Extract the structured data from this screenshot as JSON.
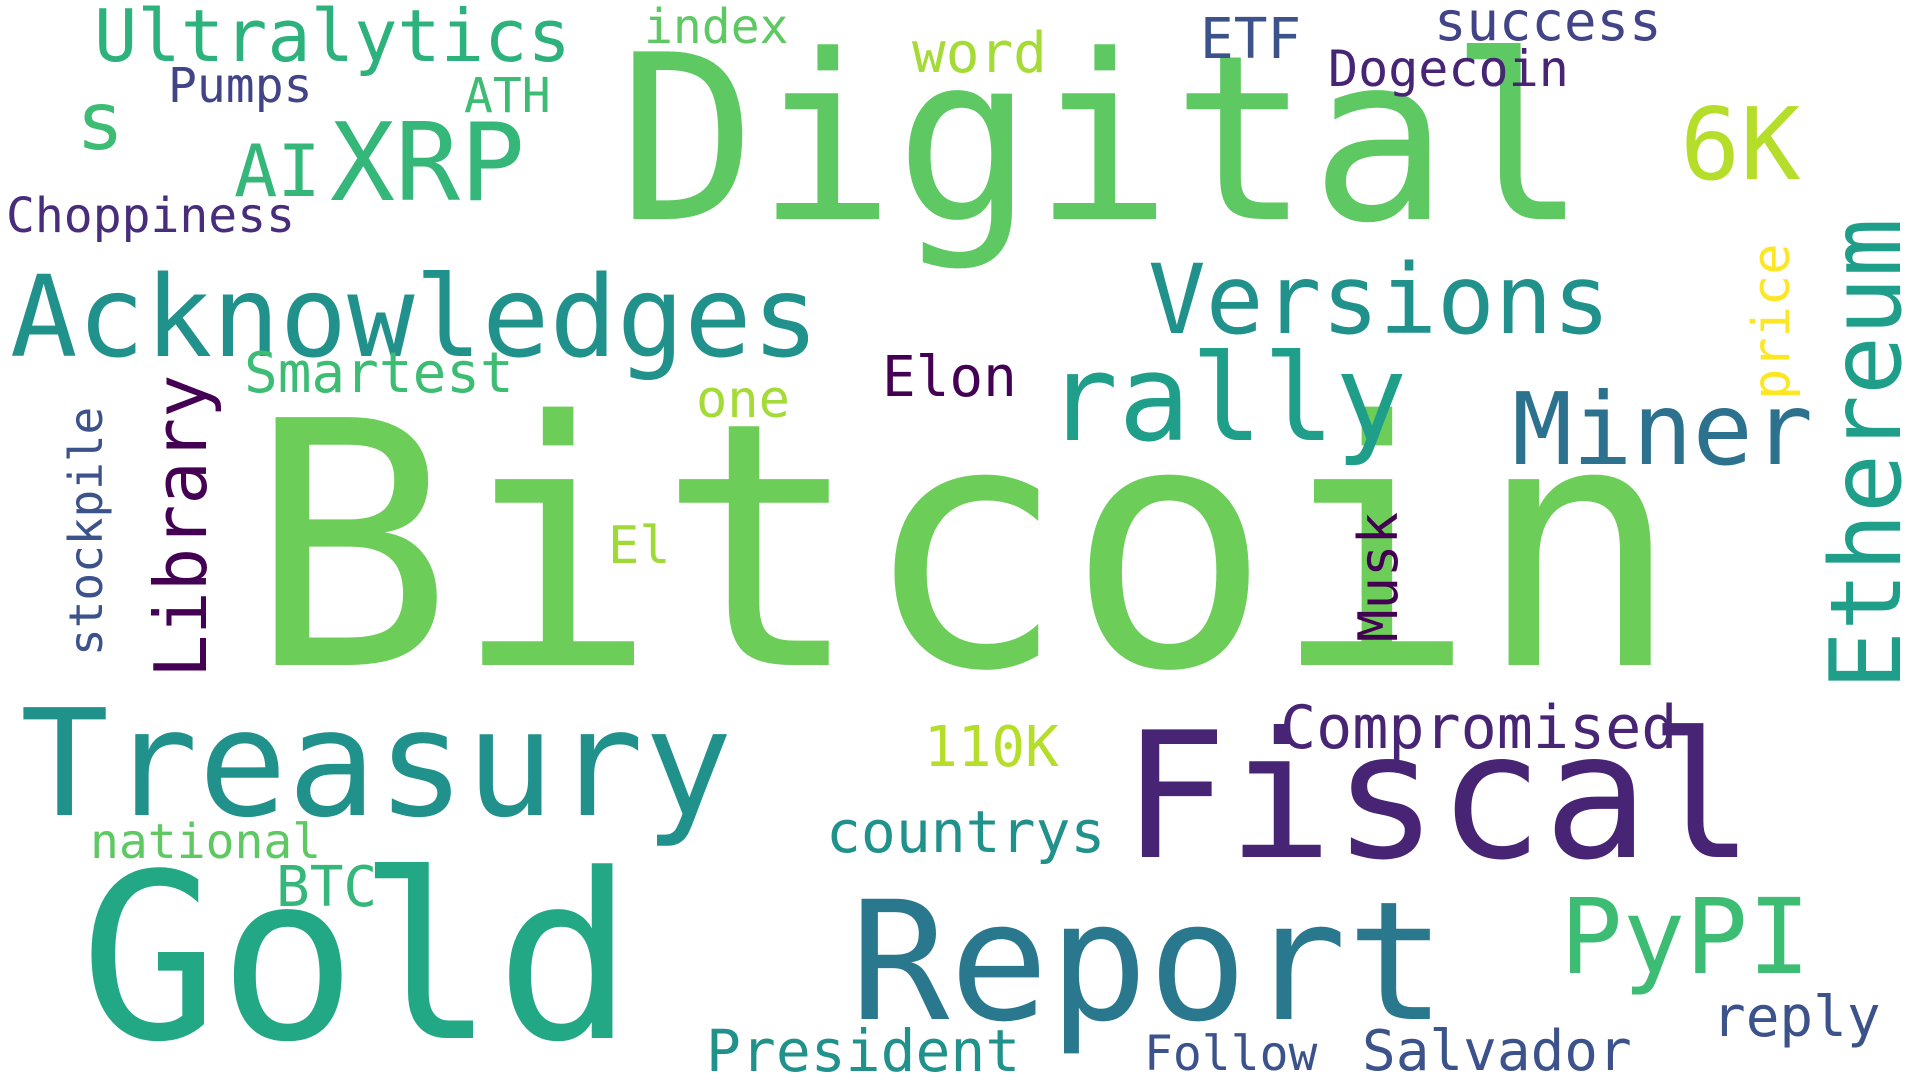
{
  "background": "#ffffff",
  "palette": {
    "green": "#6ccd59",
    "light-green": "#7ad151",
    "teal": "#1fa187",
    "teal-blue": "#21918c",
    "blue": "#2c728e",
    "mid-green": "#35b779",
    "dark-purple": "#482475",
    "deep-purple": "#440154",
    "yellow-green": "#b5de2b",
    "lime": "#a5db36",
    "yellow": "#fde725",
    "navy": "#3b528b",
    "slate": "#414487"
  },
  "words": {
    "bitcoin": "Bitcoin",
    "digital": "Digital",
    "gold": "Gold",
    "report": "Report",
    "fiscal": "Fiscal",
    "treasury": "Treasury",
    "acknowledges": "Acknowledges",
    "ethereum": "Ethereum",
    "versions": "Versions",
    "rally": "rally",
    "miner": "Miner",
    "xrp": "XRP",
    "6k": "6K",
    "pypi": "PyPI",
    "library": "Library",
    "ultralytics": "Ultralytics",
    "s": "s",
    "ai": "AI",
    "compromised": "Compromised",
    "countrys": "countrys",
    "president": "President",
    "salvador": "Salvador",
    "smartest": "Smartest",
    "elon": "Elon",
    "musk": "Musk",
    "110k": "110K",
    "reply": "reply",
    "follow": "Follow",
    "success": "success",
    "dogecoin": "Dogecoin",
    "etf": "ETF",
    "word": "word",
    "index": "index",
    "pumps": "Pumps",
    "ath": "ATH",
    "choppiness": "Choppiness",
    "stockpile": "stockpile",
    "one": "one",
    "el": "El",
    "price": "price",
    "national": "national",
    "btc": "BTC"
  }
}
